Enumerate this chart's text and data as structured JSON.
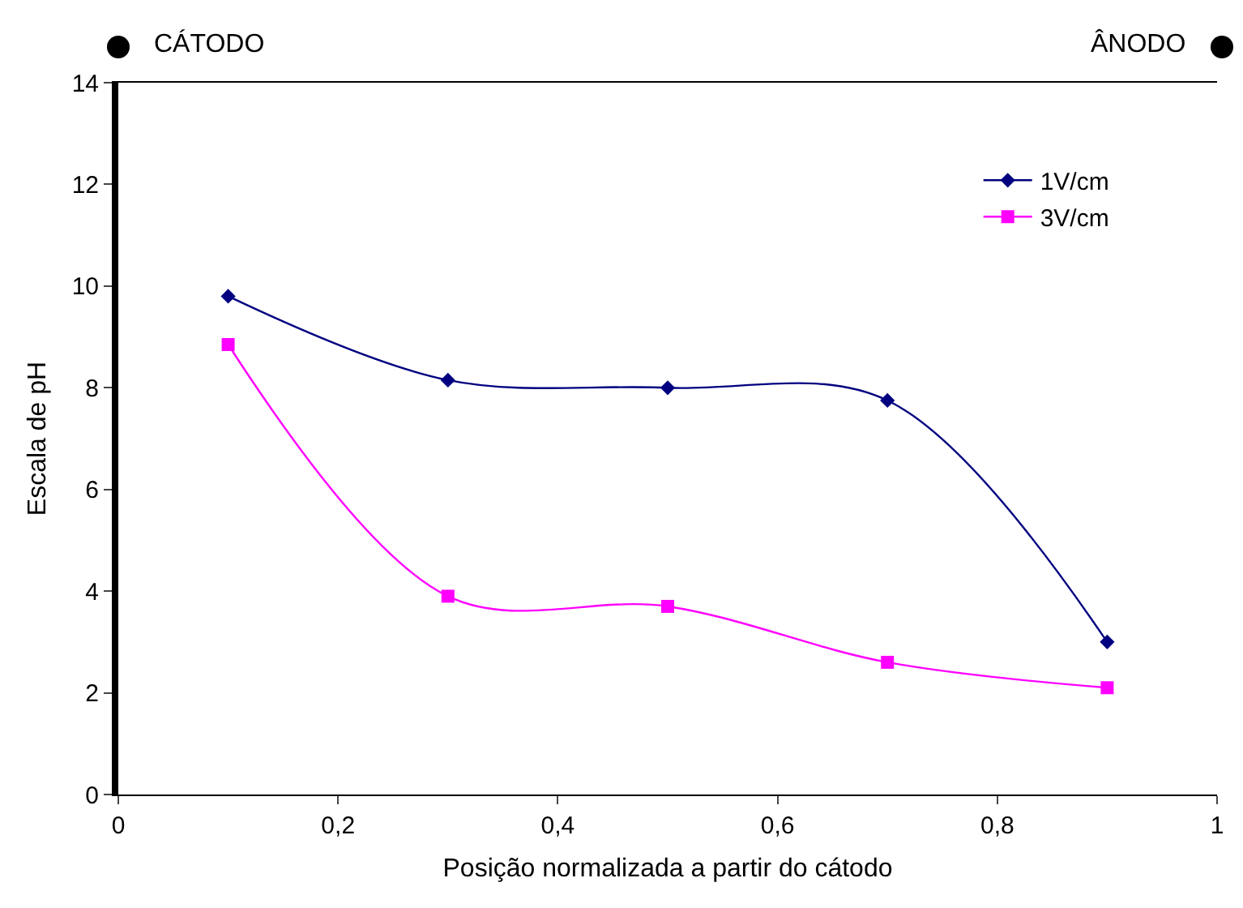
{
  "chart_data": {
    "type": "line",
    "xlabel": "Posição normalizada a partir do cátodo",
    "ylabel": "Escala de pH",
    "xlim": [
      0,
      1
    ],
    "xticks": [
      0,
      {
        "value": 0.2,
        "label": "0,2"
      },
      {
        "value": 0.4,
        "label": "0,4"
      },
      {
        "value": 0.6,
        "label": "0,6"
      },
      {
        "value": 0.8,
        "label": "0,8"
      },
      1
    ],
    "ylim": [
      0,
      14
    ],
    "yticks": [
      0,
      2,
      4,
      6,
      8,
      10,
      12,
      14
    ],
    "x": [
      0.1,
      0.3,
      0.5,
      0.7,
      0.9
    ],
    "series": [
      {
        "name": "1V/cm",
        "color": "#000080",
        "marker": "diamond",
        "values": [
          9.8,
          8.15,
          8.0,
          7.75,
          3.0
        ]
      },
      {
        "name": "3V/cm",
        "color": "#ff00ff",
        "marker": "square",
        "values": [
          8.85,
          3.9,
          3.7,
          2.6,
          2.1
        ]
      }
    ],
    "annotations": [
      "CÁTODO",
      "ÂNODO"
    ],
    "legend": "top right",
    "grid": false
  }
}
